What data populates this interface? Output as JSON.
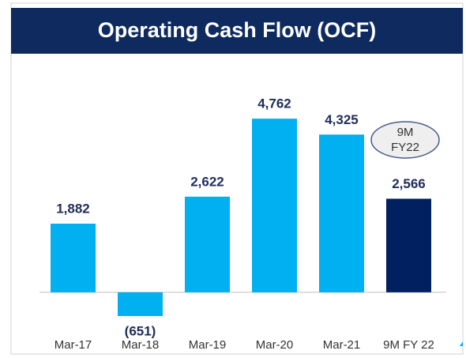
{
  "chart_data": {
    "type": "bar",
    "title": "Operating Cash Flow (OCF)",
    "categories": [
      "Mar-17",
      "Mar-18",
      "Mar-19",
      "Mar-20",
      "Mar-21",
      "9M FY 22"
    ],
    "values": [
      1882,
      -651,
      2622,
      4762,
      4325,
      2566
    ],
    "value_labels": [
      "1,882",
      "(651)",
      "2,622",
      "4,762",
      "4,325",
      "2,566"
    ],
    "colors": [
      "#00b0f0",
      "#00b0f0",
      "#00b0f0",
      "#00b0f0",
      "#00b0f0",
      "#002060"
    ],
    "annotation": [
      "9M",
      "FY22"
    ],
    "ylim": [
      -1000,
      6000
    ],
    "grid": false
  }
}
